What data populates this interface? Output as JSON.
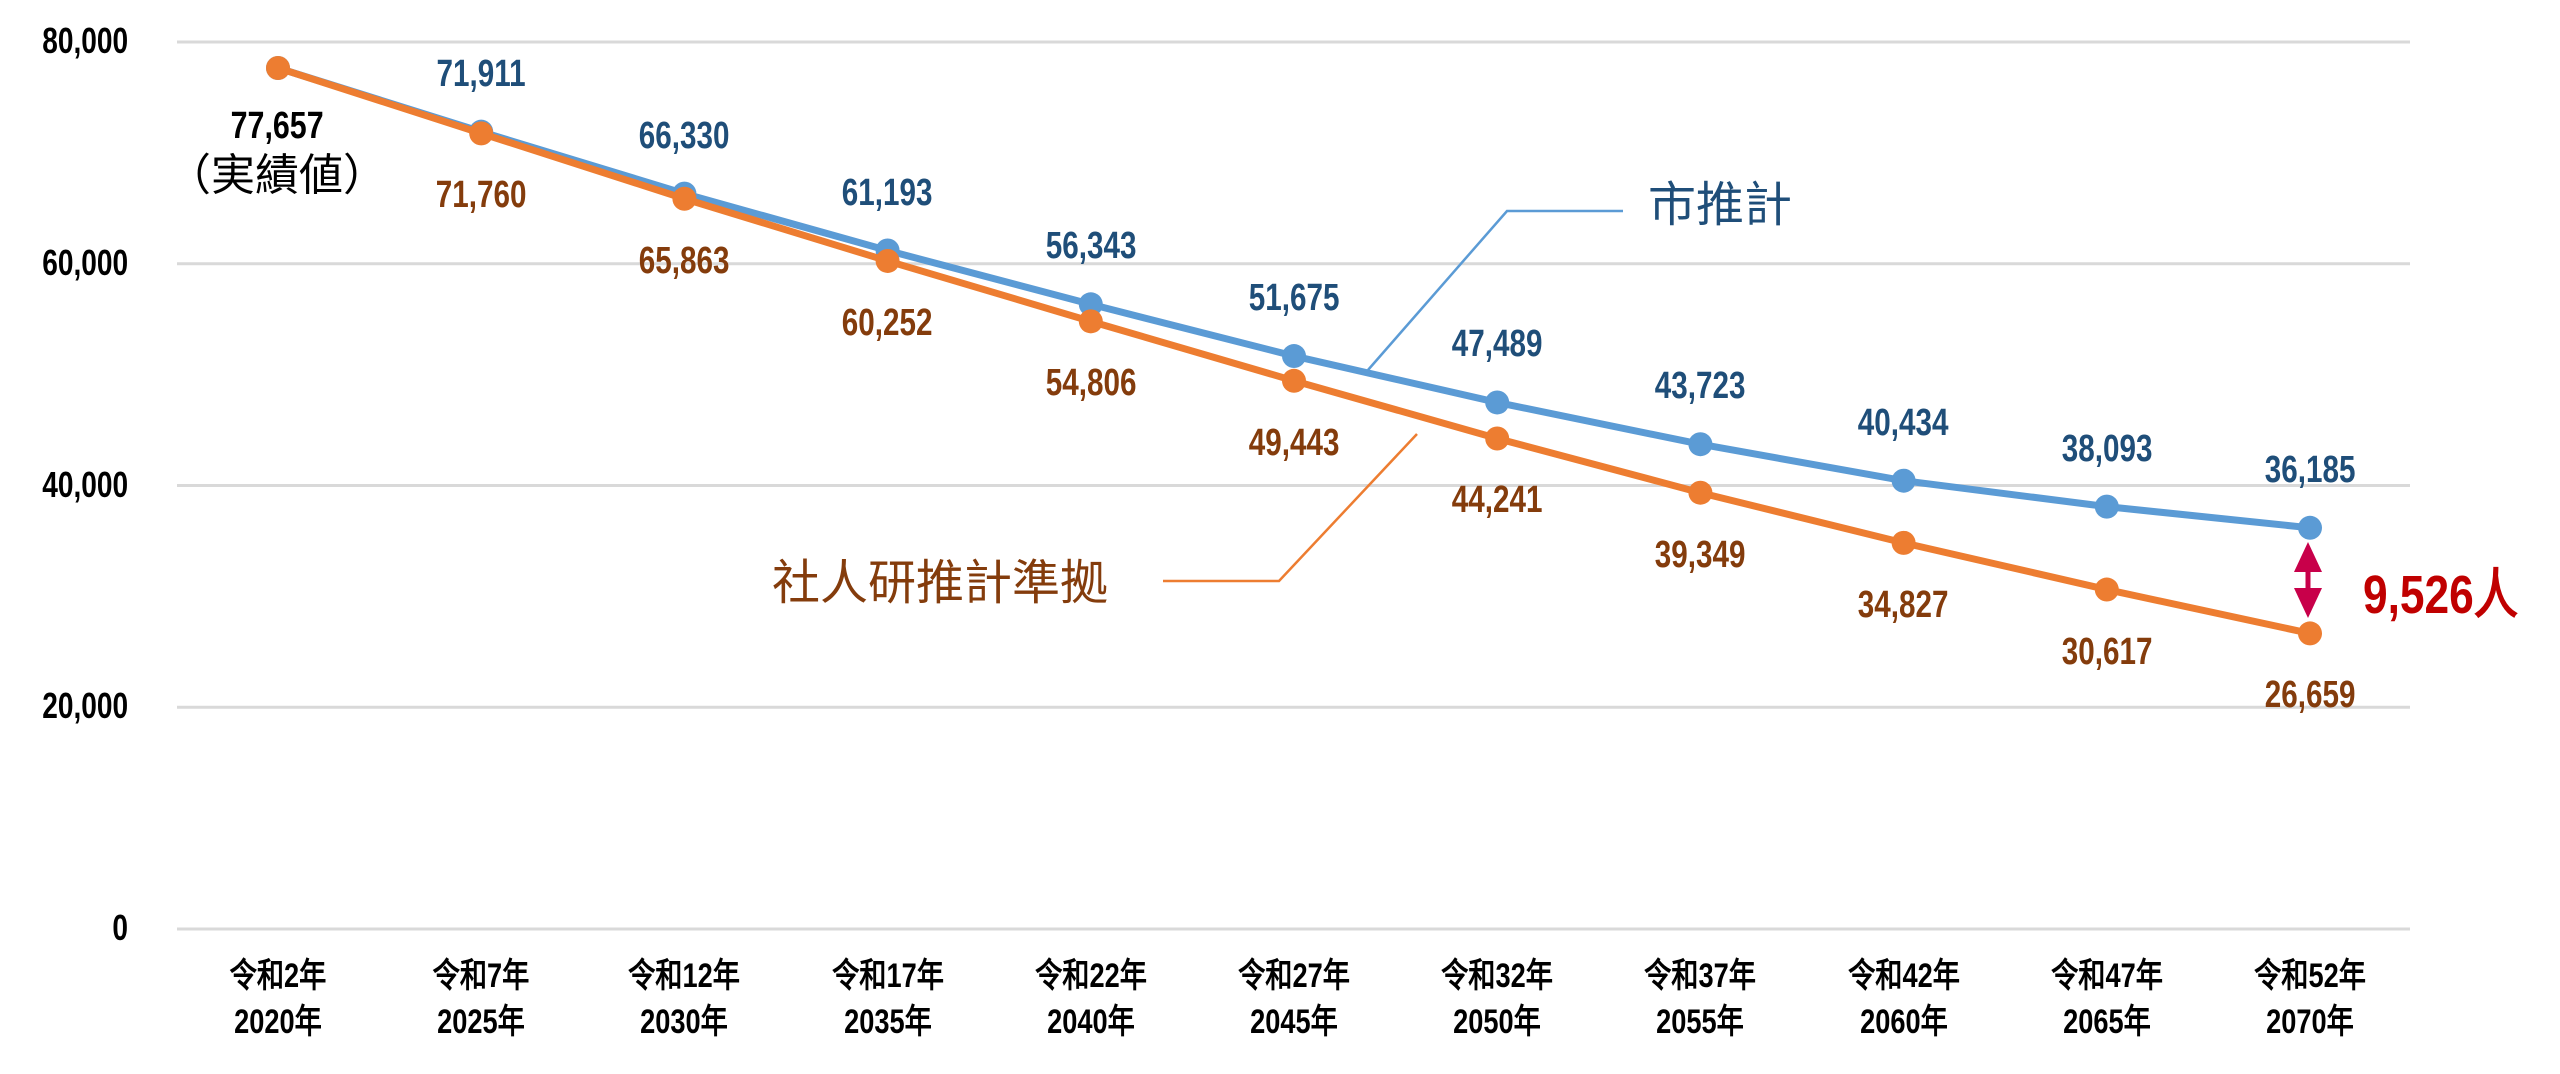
{
  "chart_data": {
    "type": "line",
    "title": "",
    "xlabel": "",
    "ylabel": "",
    "ylim": [
      0,
      80000
    ],
    "y_ticks": [
      "0",
      "20,000",
      "40,000",
      "60,000",
      "80,000"
    ],
    "grid": true,
    "categories": [
      {
        "wareki": "令和2年",
        "year": "2020年"
      },
      {
        "wareki": "令和7年",
        "year": "2025年"
      },
      {
        "wareki": "令和12年",
        "year": "2030年"
      },
      {
        "wareki": "令和17年",
        "year": "2035年"
      },
      {
        "wareki": "令和22年",
        "year": "2040年"
      },
      {
        "wareki": "令和27年",
        "year": "2045年"
      },
      {
        "wareki": "令和32年",
        "year": "2050年"
      },
      {
        "wareki": "令和37年",
        "year": "2055年"
      },
      {
        "wareki": "令和42年",
        "year": "2060年"
      },
      {
        "wareki": "令和47年",
        "year": "2065年"
      },
      {
        "wareki": "令和52年",
        "year": "2070年"
      }
    ],
    "series": [
      {
        "name": "市推計",
        "color": "#5B9BD5",
        "label_color": "#1F4E79",
        "values": [
          77657,
          71911,
          66330,
          61193,
          56343,
          51675,
          47489,
          43723,
          40434,
          38093,
          36185
        ],
        "labels": [
          null,
          "71,911",
          "66,330",
          "61,193",
          "56,343",
          "51,675",
          "47,489",
          "43,723",
          "40,434",
          "38,093",
          "36,185"
        ]
      },
      {
        "name": "社人研推計準拠",
        "color": "#ED7D31",
        "label_color": "#843C0C",
        "values": [
          77657,
          71760,
          65863,
          60252,
          54806,
          49443,
          44241,
          39349,
          34827,
          30617,
          26659
        ],
        "labels": [
          null,
          "71,760",
          "65,863",
          "60,252",
          "54,806",
          "49,443",
          "44,241",
          "39,349",
          "34,827",
          "30,617",
          "26,659"
        ]
      }
    ],
    "annotations": {
      "actual_value": "77,657",
      "actual_note": "（実績値）",
      "difference": "9,526人",
      "difference_color": "#C00000",
      "arrow_color": "#C8004A"
    },
    "legend": {
      "city": "市推計",
      "ipss": "社人研推計準拠",
      "position": "inline-callouts"
    }
  }
}
